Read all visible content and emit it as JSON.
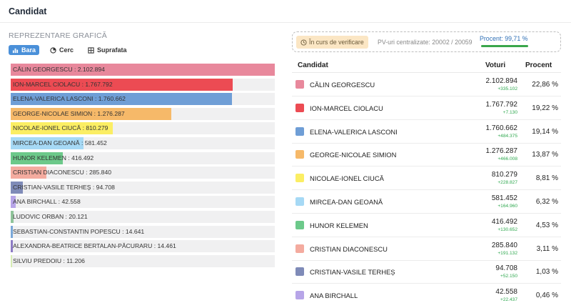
{
  "header": {
    "title": "Candidat"
  },
  "chart_panel": {
    "section_label": "REPREZENTARE GRAFICĂ",
    "tabs": [
      {
        "label": "Bara",
        "icon": "bar-chart-icon",
        "active": true
      },
      {
        "label": "Cerc",
        "icon": "pie-chart-icon",
        "active": false
      },
      {
        "label": "Suprafata",
        "icon": "grid-icon",
        "active": false
      }
    ]
  },
  "status": {
    "verify_label": "În curs de verificare",
    "pv_label": "PV-uri centralizate: 20002 / 20059",
    "percent_label": "Procent: 99,71 %",
    "percent_value": 99.71
  },
  "table": {
    "headers": {
      "candidate": "Candidat",
      "votes": "Voturi",
      "percent": "Procent"
    },
    "rows": [
      {
        "name": "CĂLIN GEORGESCU",
        "votes": "2.102.894",
        "delta": "+335.102",
        "percent": "22,86 %",
        "color": "#e8889c"
      },
      {
        "name": "ION-MARCEL CIOLACU",
        "votes": "1.767.792",
        "delta": "+7.130",
        "percent": "19,22 %",
        "color": "#ec4b53"
      },
      {
        "name": "ELENA-VALERICA LASCONI",
        "votes": "1.760.662",
        "delta": "+484.375",
        "percent": "19,14 %",
        "color": "#6f9ed6"
      },
      {
        "name": "GEORGE-NICOLAE SIMION",
        "votes": "1.276.287",
        "delta": "+466.008",
        "percent": "13,87 %",
        "color": "#f6b969"
      },
      {
        "name": "NICOLAE-IONEL CIUCĂ",
        "votes": "810.279",
        "delta": "+228.827",
        "percent": "8,81 %",
        "color": "#fbee64"
      },
      {
        "name": "MIRCEA-DAN GEOANĂ",
        "votes": "581.452",
        "delta": "+164.960",
        "percent": "6,32 %",
        "color": "#a6d9f5"
      },
      {
        "name": "HUNOR KELEMEN",
        "votes": "416.492",
        "delta": "+130.652",
        "percent": "4,53 %",
        "color": "#6cc98a"
      },
      {
        "name": "CRISTIAN DIACONESCU",
        "votes": "285.840",
        "delta": "+191.132",
        "percent": "3,11 %",
        "color": "#f4ab9f"
      },
      {
        "name": "CRISTIAN-VASILE TERHEȘ",
        "votes": "94.708",
        "delta": "+52.150",
        "percent": "1,03 %",
        "color": "#7f8bb8"
      },
      {
        "name": "ANA BIRCHALL",
        "votes": "42.558",
        "delta": "+22.437",
        "percent": "0,46 %",
        "color": "#b7a5e8"
      }
    ]
  },
  "chart_data": {
    "type": "bar",
    "orientation": "horizontal",
    "categories": [
      "CĂLIN GEORGESCU",
      "ION-MARCEL CIOLACU",
      "ELENA-VALERICA LASCONI",
      "GEORGE-NICOLAE SIMION",
      "NICOLAE-IONEL CIUCĂ",
      "MIRCEA-DAN GEOANĂ",
      "HUNOR KELEMEN",
      "CRISTIAN DIACONESCU",
      "CRISTIAN-VASILE TERHEȘ",
      "ANA BIRCHALL",
      "LUDOVIC ORBAN",
      "SEBASTIAN-CONSTANTIN POPESCU",
      "ALEXANDRA-BEATRICE BERTALAN-PĂCURARU",
      "SILVIU PREDOIU"
    ],
    "labels": [
      "CĂLIN GEORGESCU : 2.102.894",
      "ION-MARCEL CIOLACU : 1.767.792",
      "ELENA-VALERICA LASCONI : 1.760.662",
      "GEORGE-NICOLAE SIMION : 1.276.287",
      "NICOLAE-IONEL CIUCĂ : 810.279",
      "MIRCEA-DAN GEOANĂ : 581.452",
      "HUNOR KELEMEN : 416.492",
      "CRISTIAN DIACONESCU : 285.840",
      "CRISTIAN-VASILE TERHEȘ : 94.708",
      "ANA BIRCHALL : 42.558",
      "LUDOVIC ORBAN : 20.121",
      "SEBASTIAN-CONSTANTIN POPESCU : 14.641",
      "ALEXANDRA-BEATRICE BERTALAN-PĂCURARU : 14.461",
      "SILVIU PREDOIU : 11.206"
    ],
    "values": [
      2102894,
      1767792,
      1760662,
      1276287,
      810279,
      581452,
      416492,
      285840,
      94708,
      42558,
      20121,
      14641,
      14461,
      11206
    ],
    "colors": [
      "#e8889c",
      "#ec4b53",
      "#6f9ed6",
      "#f6b969",
      "#fbee64",
      "#a6d9f5",
      "#6cc98a",
      "#f4ab9f",
      "#7f8bb8",
      "#b7a5e8",
      "#8fc49a",
      "#7aa8d8",
      "#8c7bc4",
      "#d7ecb4"
    ]
  }
}
